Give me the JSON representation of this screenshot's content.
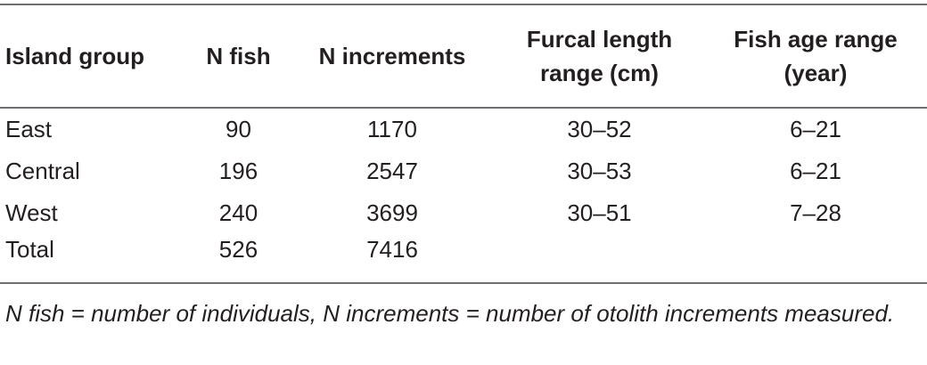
{
  "table": {
    "header": [
      "Island group",
      "N fish",
      "N increments",
      "Furcal length range (cm)",
      "Fish age range (year)"
    ],
    "rows": [
      [
        "East",
        "90",
        "1170",
        "30–52",
        "6–21"
      ],
      [
        "Central",
        "196",
        "2547",
        "30–53",
        "6–21"
      ],
      [
        "West",
        "240",
        "3699",
        "30–51",
        "7–28"
      ],
      [
        "Total",
        "526",
        "7416"
      ]
    ]
  },
  "footnote": "N fish = number of individuals, N increments = number of otolith increments measured."
}
